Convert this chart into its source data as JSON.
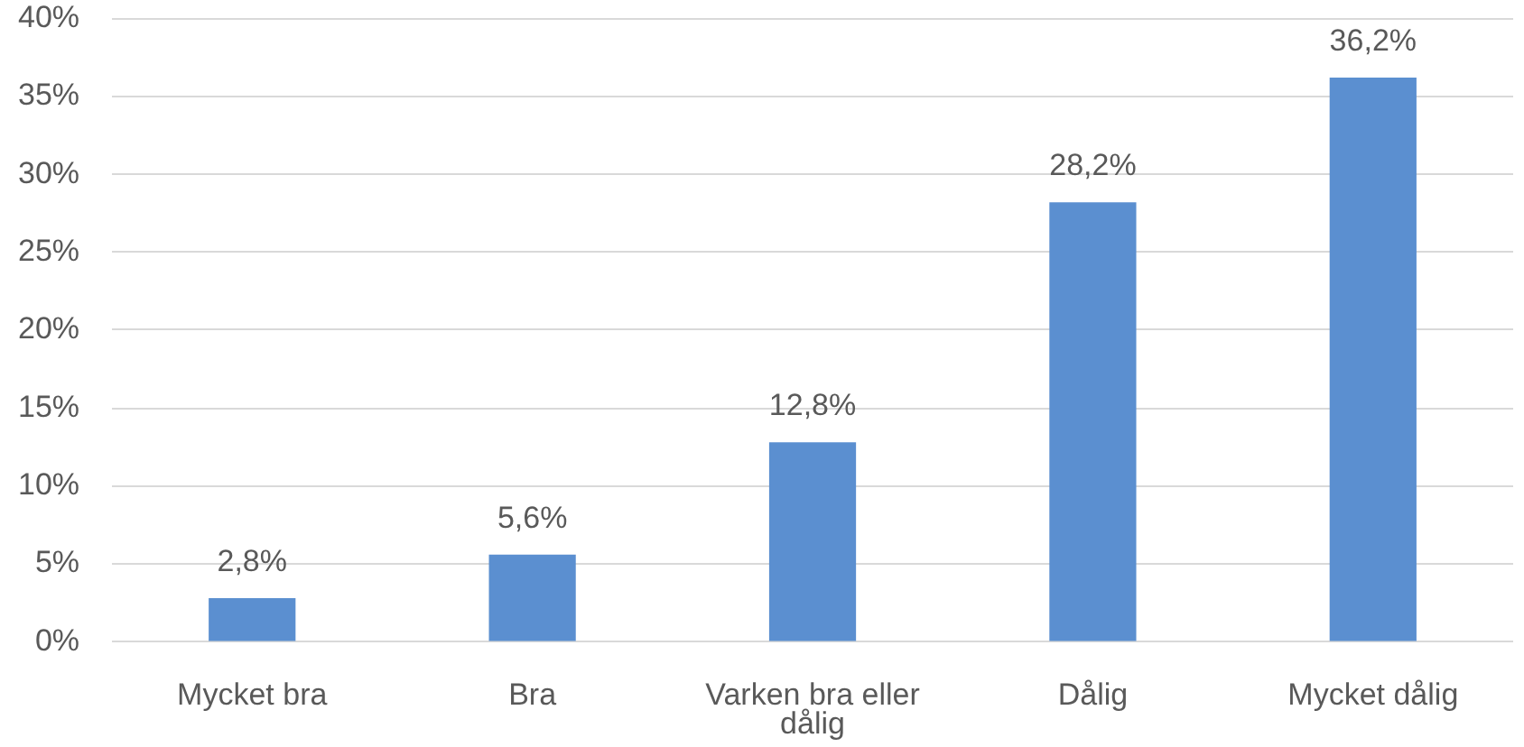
{
  "chart_data": {
    "type": "bar",
    "categories": [
      "Mycket bra",
      "Bra",
      "Varken bra eller dålig",
      "Dålig",
      "Mycket dålig"
    ],
    "values": [
      2.8,
      5.6,
      12.8,
      28.2,
      36.2
    ],
    "value_labels": [
      "2,8%",
      "5,6%",
      "12,8%",
      "28,2%",
      "36,2%"
    ],
    "color": "#5b8fd0",
    "ylim": [
      0,
      40
    ],
    "yticks": [
      {
        "value": 0,
        "label": "0%"
      },
      {
        "value": 5,
        "label": "5%"
      },
      {
        "value": 10,
        "label": "10%"
      },
      {
        "value": 15,
        "label": "15%"
      },
      {
        "value": 20,
        "label": "20%"
      },
      {
        "value": 25,
        "label": "25%"
      },
      {
        "value": 30,
        "label": "30%"
      },
      {
        "value": 35,
        "label": "35%"
      },
      {
        "value": 40,
        "label": "40%"
      }
    ],
    "grid": "y"
  }
}
